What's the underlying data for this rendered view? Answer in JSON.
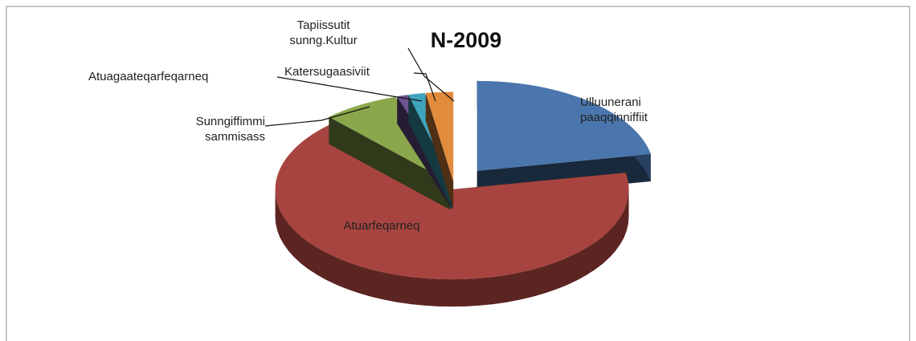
{
  "chart_data": {
    "type": "pie3d",
    "title": "N-2009",
    "categories": [
      "Ulluunerani paaqqinniffiit",
      "Atuarfeqarneq",
      "Sunngiffimmi sammisass",
      "Atuagaateqarfeqarneq",
      "Katersugaasiviit",
      "Tapiissutit sunng.Kultur"
    ],
    "values": [
      22,
      66,
      7,
      1,
      1.5,
      2.5
    ],
    "colors": [
      "#4a76ad",
      "#a8443f",
      "#8ba74c",
      "#6e5490",
      "#3ea3bb",
      "#e28b3d"
    ]
  }
}
